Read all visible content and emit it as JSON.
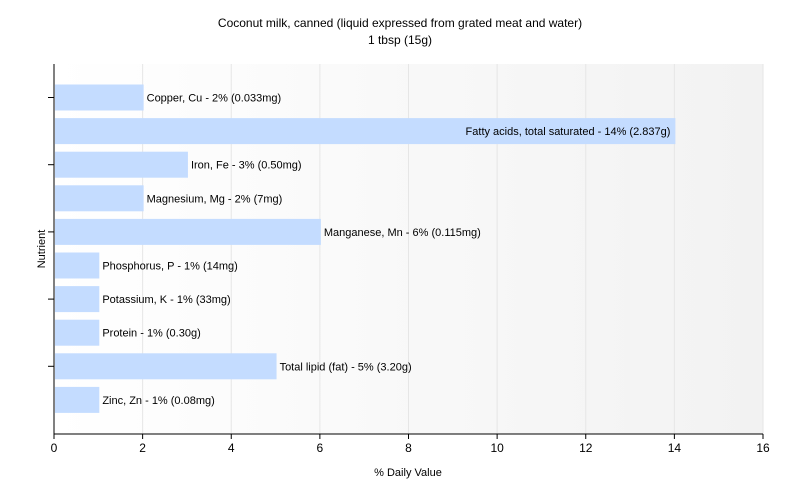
{
  "chart_data": {
    "type": "bar",
    "orientation": "horizontal",
    "title": "Coconut milk, canned (liquid expressed from grated meat and water)",
    "subtitle": "1 tbsp (15g)",
    "xlabel": "% Daily Value",
    "ylabel": "Nutrient",
    "xlim": [
      0,
      16
    ],
    "xticks": [
      0,
      2,
      4,
      6,
      8,
      10,
      12,
      14,
      16
    ],
    "grid": true,
    "bar_color": "#c4dcff",
    "categories": [
      "Copper, Cu",
      "Fatty acids, total saturated",
      "Iron, Fe",
      "Magnesium, Mg",
      "Manganese, Mn",
      "Phosphorus, P",
      "Potassium, K",
      "Protein",
      "Total lipid (fat)",
      "Zinc, Zn"
    ],
    "values": [
      2,
      14,
      3,
      2,
      6,
      1,
      1,
      1,
      5,
      1
    ],
    "labels": [
      "Copper, Cu - 2% (0.033mg)",
      "Fatty acids, total saturated - 14% (2.837g)",
      "Iron, Fe - 3% (0.50mg)",
      "Magnesium, Mg - 2% (7mg)",
      "Manganese, Mn - 6% (0.115mg)",
      "Phosphorus, P - 1% (14mg)",
      "Potassium, K - 1% (33mg)",
      "Protein - 1% (0.30g)",
      "Total lipid (fat) - 5% (3.20g)",
      "Zinc, Zn - 1% (0.08mg)"
    ]
  }
}
